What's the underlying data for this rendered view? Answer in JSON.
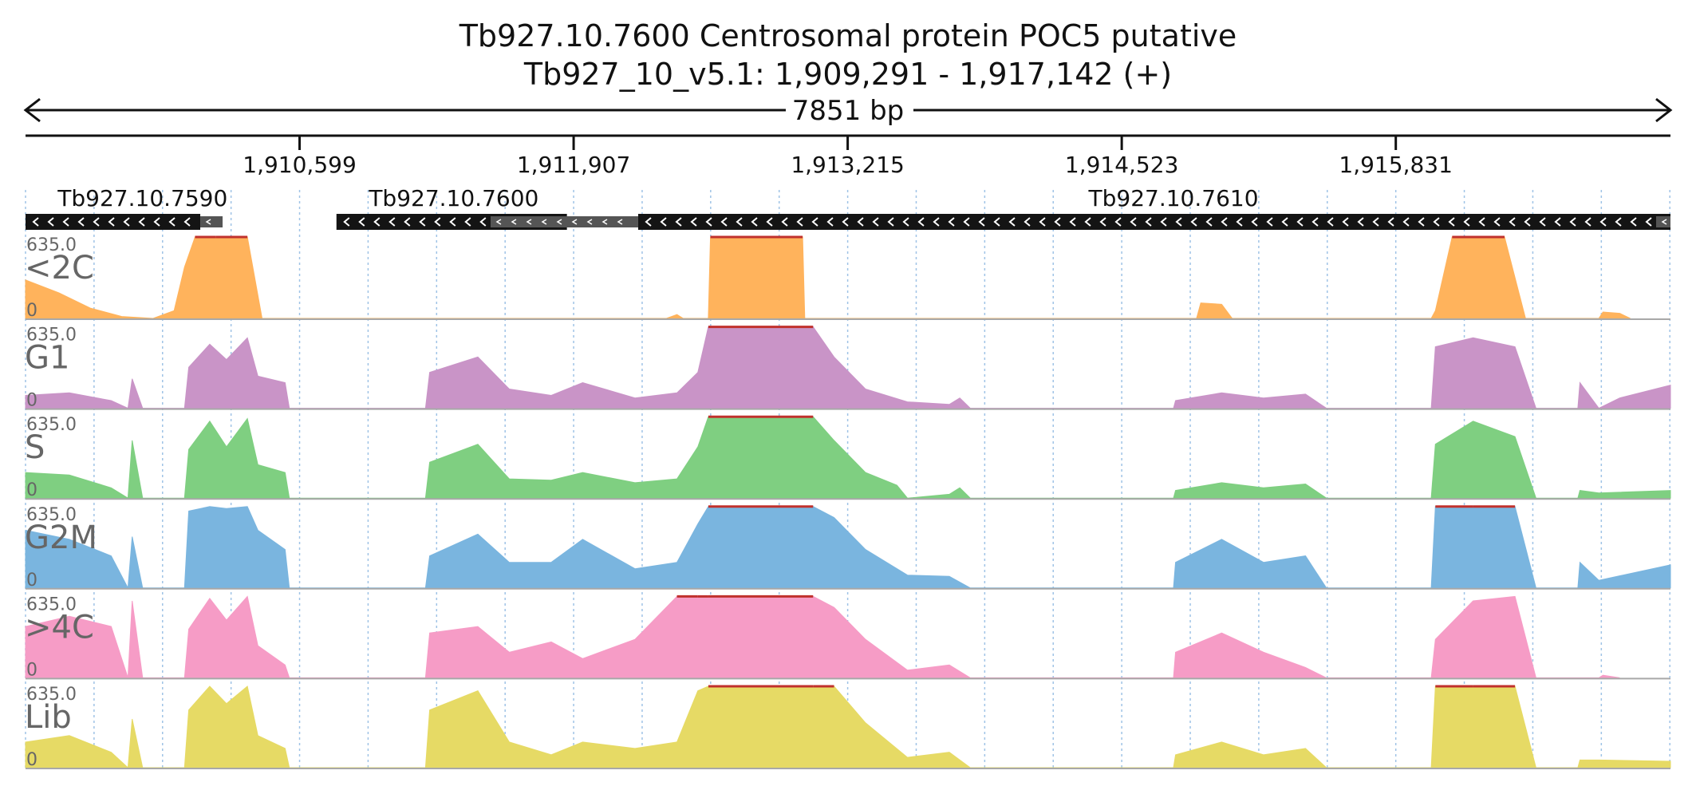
{
  "chart_data": {
    "type": "area",
    "title": "Tb927.10.7600  Centrosomal protein POC5  putative",
    "subtitle": "Tb927_10_v5.1: 1,909,291 - 1,917,142 (+)",
    "span_label": "7851 bp",
    "x_range": [
      1909291,
      1917142
    ],
    "x_ticks": [
      1910599,
      1911907,
      1913215,
      1914523,
      1915831
    ],
    "x_tick_labels": [
      "1,910,599",
      "1,911,907",
      "1,913,215",
      "1,914,523",
      "1,915,831"
    ],
    "genes": [
      {
        "name": "Tb927.10.7590",
        "start": 1909291,
        "end": 1910125,
        "strand": "-"
      },
      {
        "name": "Tb927.10.7600",
        "start": 1910775,
        "end": 1911875,
        "strand": "-"
      },
      {
        "name": "Tb927.10.7610",
        "start": 1912215,
        "end": 1917142,
        "strand": "-"
      }
    ],
    "gene_label_positions": [
      1909850,
      1911335,
      1914770
    ],
    "y_range": [
      0,
      635.0
    ],
    "y_max_label": "635.0",
    "y_min_label": "0",
    "series": [
      {
        "name": "<2C",
        "color": "#ffb35c",
        "clip_color": "#c0312d",
        "points": [
          [
            1909291,
            300
          ],
          [
            1909450,
            200
          ],
          [
            1909600,
            80
          ],
          [
            1909750,
            15
          ],
          [
            1909900,
            0
          ],
          [
            1910000,
            60
          ],
          [
            1910050,
            400
          ],
          [
            1910100,
            635
          ],
          [
            1910200,
            635
          ],
          [
            1910350,
            635
          ],
          [
            1910420,
            0
          ],
          [
            1912350,
            0
          ],
          [
            1912400,
            30
          ],
          [
            1912430,
            0
          ],
          [
            1912550,
            0
          ],
          [
            1912560,
            635
          ],
          [
            1913000,
            635
          ],
          [
            1913010,
            0
          ],
          [
            1914880,
            0
          ],
          [
            1914900,
            120
          ],
          [
            1915000,
            110
          ],
          [
            1915050,
            0
          ],
          [
            1916000,
            0
          ],
          [
            1916020,
            60
          ],
          [
            1916100,
            635
          ],
          [
            1916350,
            635
          ],
          [
            1916450,
            0
          ],
          [
            1916800,
            0
          ],
          [
            1916820,
            50
          ],
          [
            1916900,
            40
          ],
          [
            1916950,
            0
          ]
        ]
      },
      {
        "name": "G1",
        "color": "#c994c7",
        "clip_color": "#c0312d",
        "points": [
          [
            1909291,
            100
          ],
          [
            1909500,
            120
          ],
          [
            1909700,
            60
          ],
          [
            1909780,
            0
          ],
          [
            1909800,
            230
          ],
          [
            1909850,
            0
          ],
          [
            1910050,
            0
          ],
          [
            1910070,
            320
          ],
          [
            1910170,
            500
          ],
          [
            1910250,
            380
          ],
          [
            1910350,
            550
          ],
          [
            1910400,
            250
          ],
          [
            1910530,
            200
          ],
          [
            1910550,
            0
          ],
          [
            1911200,
            0
          ],
          [
            1911220,
            280
          ],
          [
            1911450,
            400
          ],
          [
            1911600,
            150
          ],
          [
            1911800,
            100
          ],
          [
            1911950,
            200
          ],
          [
            1912200,
            80
          ],
          [
            1912400,
            120
          ],
          [
            1912500,
            280
          ],
          [
            1912550,
            635
          ],
          [
            1913050,
            635
          ],
          [
            1913150,
            400
          ],
          [
            1913300,
            150
          ],
          [
            1913500,
            50
          ],
          [
            1913700,
            30
          ],
          [
            1913750,
            80
          ],
          [
            1913800,
            0
          ],
          [
            1914770,
            0
          ],
          [
            1914780,
            60
          ],
          [
            1915000,
            120
          ],
          [
            1915200,
            80
          ],
          [
            1915400,
            110
          ],
          [
            1915500,
            0
          ],
          [
            1916000,
            0
          ],
          [
            1916020,
            480
          ],
          [
            1916200,
            550
          ],
          [
            1916400,
            480
          ],
          [
            1916500,
            0
          ],
          [
            1916700,
            0
          ],
          [
            1916710,
            200
          ],
          [
            1916800,
            0
          ],
          [
            1916900,
            80
          ],
          [
            1917142,
            180
          ]
        ]
      },
      {
        "name": "S",
        "color": "#7fcf81",
        "clip_color": "#c0312d",
        "points": [
          [
            1909291,
            200
          ],
          [
            1909500,
            180
          ],
          [
            1909700,
            80
          ],
          [
            1909780,
            0
          ],
          [
            1909800,
            450
          ],
          [
            1909850,
            0
          ],
          [
            1910050,
            0
          ],
          [
            1910070,
            380
          ],
          [
            1910170,
            600
          ],
          [
            1910250,
            400
          ],
          [
            1910350,
            620
          ],
          [
            1910400,
            260
          ],
          [
            1910530,
            200
          ],
          [
            1910550,
            0
          ],
          [
            1911200,
            0
          ],
          [
            1911220,
            280
          ],
          [
            1911450,
            420
          ],
          [
            1911600,
            150
          ],
          [
            1911800,
            140
          ],
          [
            1911950,
            200
          ],
          [
            1912200,
            120
          ],
          [
            1912400,
            150
          ],
          [
            1912500,
            400
          ],
          [
            1912550,
            635
          ],
          [
            1913050,
            635
          ],
          [
            1913150,
            450
          ],
          [
            1913300,
            200
          ],
          [
            1913450,
            100
          ],
          [
            1913500,
            0
          ],
          [
            1913700,
            30
          ],
          [
            1913750,
            80
          ],
          [
            1913800,
            0
          ],
          [
            1914770,
            0
          ],
          [
            1914780,
            60
          ],
          [
            1915000,
            120
          ],
          [
            1915200,
            80
          ],
          [
            1915400,
            110
          ],
          [
            1915500,
            0
          ],
          [
            1916000,
            0
          ],
          [
            1916020,
            420
          ],
          [
            1916200,
            600
          ],
          [
            1916400,
            480
          ],
          [
            1916500,
            0
          ],
          [
            1916700,
            0
          ],
          [
            1916710,
            60
          ],
          [
            1916800,
            40
          ],
          [
            1917142,
            60
          ]
        ]
      },
      {
        "name": "G2M",
        "color": "#7ab5df",
        "clip_color": "#c0312d",
        "points": [
          [
            1909291,
            450
          ],
          [
            1909500,
            380
          ],
          [
            1909700,
            250
          ],
          [
            1909780,
            0
          ],
          [
            1909800,
            400
          ],
          [
            1909850,
            0
          ],
          [
            1910050,
            0
          ],
          [
            1910070,
            600
          ],
          [
            1910170,
            635
          ],
          [
            1910250,
            620
          ],
          [
            1910350,
            635
          ],
          [
            1910400,
            450
          ],
          [
            1910530,
            300
          ],
          [
            1910550,
            0
          ],
          [
            1911200,
            0
          ],
          [
            1911220,
            250
          ],
          [
            1911450,
            420
          ],
          [
            1911600,
            200
          ],
          [
            1911800,
            200
          ],
          [
            1911950,
            380
          ],
          [
            1912200,
            150
          ],
          [
            1912400,
            200
          ],
          [
            1912500,
            500
          ],
          [
            1912550,
            635
          ],
          [
            1913050,
            635
          ],
          [
            1913150,
            550
          ],
          [
            1913300,
            300
          ],
          [
            1913500,
            100
          ],
          [
            1913700,
            90
          ],
          [
            1913800,
            0
          ],
          [
            1914770,
            0
          ],
          [
            1914780,
            200
          ],
          [
            1915000,
            380
          ],
          [
            1915200,
            200
          ],
          [
            1915400,
            250
          ],
          [
            1915500,
            0
          ],
          [
            1916000,
            0
          ],
          [
            1916020,
            635
          ],
          [
            1916200,
            635
          ],
          [
            1916400,
            635
          ],
          [
            1916500,
            0
          ],
          [
            1916700,
            0
          ],
          [
            1916710,
            200
          ],
          [
            1916800,
            60
          ],
          [
            1917142,
            180
          ]
        ]
      },
      {
        "name": ">4C",
        "color": "#f69cc6",
        "clip_color": "#c0312d",
        "points": [
          [
            1909291,
            400
          ],
          [
            1909500,
            480
          ],
          [
            1909700,
            400
          ],
          [
            1909780,
            0
          ],
          [
            1909800,
            600
          ],
          [
            1909850,
            0
          ],
          [
            1910050,
            0
          ],
          [
            1910070,
            380
          ],
          [
            1910170,
            620
          ],
          [
            1910250,
            450
          ],
          [
            1910350,
            635
          ],
          [
            1910400,
            250
          ],
          [
            1910530,
            100
          ],
          [
            1910550,
            0
          ],
          [
            1911200,
            0
          ],
          [
            1911220,
            350
          ],
          [
            1911450,
            400
          ],
          [
            1911600,
            200
          ],
          [
            1911800,
            280
          ],
          [
            1911950,
            150
          ],
          [
            1912200,
            300
          ],
          [
            1912400,
            635
          ],
          [
            1912500,
            635
          ],
          [
            1912550,
            635
          ],
          [
            1913050,
            635
          ],
          [
            1913150,
            550
          ],
          [
            1913300,
            300
          ],
          [
            1913500,
            60
          ],
          [
            1913700,
            100
          ],
          [
            1913800,
            0
          ],
          [
            1914770,
            0
          ],
          [
            1914780,
            200
          ],
          [
            1915000,
            350
          ],
          [
            1915200,
            200
          ],
          [
            1915400,
            80
          ],
          [
            1915500,
            0
          ],
          [
            1916000,
            0
          ],
          [
            1916020,
            300
          ],
          [
            1916200,
            600
          ],
          [
            1916400,
            635
          ],
          [
            1916500,
            0
          ],
          [
            1916800,
            0
          ],
          [
            1916820,
            20
          ],
          [
            1916900,
            0
          ]
        ]
      },
      {
        "name": "Lib",
        "color": "#e6da65",
        "clip_color": "#c0312d",
        "points": [
          [
            1909291,
            200
          ],
          [
            1909500,
            250
          ],
          [
            1909700,
            120
          ],
          [
            1909780,
            0
          ],
          [
            1909800,
            380
          ],
          [
            1909850,
            0
          ],
          [
            1910050,
            0
          ],
          [
            1910070,
            450
          ],
          [
            1910170,
            635
          ],
          [
            1910250,
            500
          ],
          [
            1910350,
            635
          ],
          [
            1910400,
            250
          ],
          [
            1910530,
            150
          ],
          [
            1910550,
            0
          ],
          [
            1911200,
            0
          ],
          [
            1911220,
            450
          ],
          [
            1911450,
            600
          ],
          [
            1911600,
            200
          ],
          [
            1911800,
            100
          ],
          [
            1911950,
            200
          ],
          [
            1912200,
            150
          ],
          [
            1912400,
            200
          ],
          [
            1912500,
            600
          ],
          [
            1912550,
            635
          ],
          [
            1913050,
            635
          ],
          [
            1913150,
            635
          ],
          [
            1913300,
            350
          ],
          [
            1913500,
            80
          ],
          [
            1913700,
            120
          ],
          [
            1913800,
            0
          ],
          [
            1914770,
            0
          ],
          [
            1914780,
            100
          ],
          [
            1915000,
            200
          ],
          [
            1915200,
            100
          ],
          [
            1915400,
            150
          ],
          [
            1915500,
            0
          ],
          [
            1916000,
            0
          ],
          [
            1916020,
            635
          ],
          [
            1916200,
            635
          ],
          [
            1916400,
            635
          ],
          [
            1916500,
            0
          ],
          [
            1916700,
            0
          ],
          [
            1916710,
            60
          ],
          [
            1916800,
            60
          ],
          [
            1917142,
            50
          ]
        ]
      }
    ],
    "grid": true
  }
}
